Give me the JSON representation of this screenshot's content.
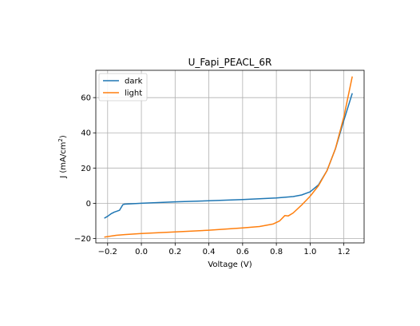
{
  "chart_data": {
    "type": "line",
    "title": "U_Fapi_PEACL_6R",
    "xlabel": "Voltage (V)",
    "ylabel": "J (mA/cm²)",
    "xlim": [
      -0.27,
      1.32
    ],
    "ylim": [
      -22.5,
      75.5
    ],
    "xticks": [
      -0.2,
      0.0,
      0.2,
      0.4,
      0.6,
      0.8,
      1.0,
      1.2
    ],
    "xtick_labels": [
      "−0.2",
      "0.0",
      "0.2",
      "0.4",
      "0.6",
      "0.8",
      "1.0",
      "1.2"
    ],
    "yticks": [
      -20,
      0,
      20,
      40,
      60
    ],
    "ytick_labels": [
      "−20",
      "0",
      "20",
      "40",
      "60"
    ],
    "grid": true,
    "legend_position": "upper-left",
    "series": [
      {
        "name": "dark",
        "color": "#1f77b4",
        "points": [
          [
            -0.22,
            -8.5
          ],
          [
            -0.2,
            -7.4
          ],
          [
            -0.18,
            -6.0
          ],
          [
            -0.16,
            -5.0
          ],
          [
            -0.13,
            -4.0
          ],
          [
            -0.11,
            -0.8
          ],
          [
            -0.1,
            -0.5
          ],
          [
            0.0,
            0.0
          ],
          [
            0.2,
            0.8
          ],
          [
            0.4,
            1.4
          ],
          [
            0.6,
            2.1
          ],
          [
            0.8,
            3.0
          ],
          [
            0.9,
            3.8
          ],
          [
            0.95,
            4.7
          ],
          [
            1.0,
            6.5
          ],
          [
            1.05,
            10.5
          ],
          [
            1.1,
            18.5
          ],
          [
            1.15,
            31.0
          ],
          [
            1.2,
            47.0
          ],
          [
            1.25,
            62.5
          ]
        ]
      },
      {
        "name": "light",
        "color": "#ff7f0e",
        "points": [
          [
            -0.22,
            -19.2
          ],
          [
            -0.15,
            -18.2
          ],
          [
            -0.1,
            -17.8
          ],
          [
            0.0,
            -17.2
          ],
          [
            0.2,
            -16.3
          ],
          [
            0.4,
            -15.3
          ],
          [
            0.6,
            -14.0
          ],
          [
            0.7,
            -13.2
          ],
          [
            0.78,
            -11.8
          ],
          [
            0.82,
            -10.0
          ],
          [
            0.85,
            -7.0
          ],
          [
            0.87,
            -7.2
          ],
          [
            0.9,
            -5.5
          ],
          [
            0.95,
            -1.0
          ],
          [
            1.0,
            4.0
          ],
          [
            1.05,
            10.0
          ],
          [
            1.1,
            18.5
          ],
          [
            1.15,
            31.0
          ],
          [
            1.2,
            49.0
          ],
          [
            1.25,
            72.0
          ]
        ]
      }
    ]
  }
}
